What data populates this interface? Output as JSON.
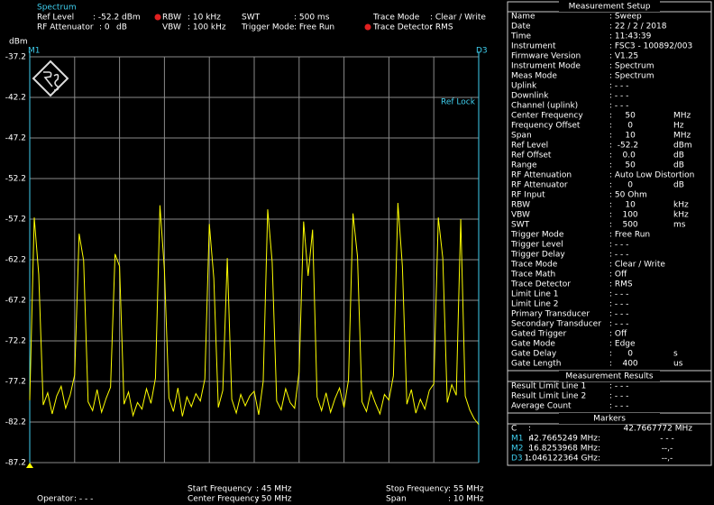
{
  "header": {
    "mode": "Spectrum",
    "ref_level_label": "Ref Level",
    "ref_level": ": -52.2 dBm",
    "rf_att_label": "RF Attenuator",
    "rf_att": ": 0",
    "rf_att_unit": "dB",
    "rbw_label": "RBW",
    "rbw": ": 10 kHz",
    "vbw_label": "VBW",
    "vbw": ": 100 kHz",
    "swt_label": "SWT",
    "swt": ": 500 ms",
    "trigger_label": "Trigger Mode",
    "trigger": ": Free Run",
    "trace_mode_label": "Trace Mode",
    "trace_mode": ": Clear / Write",
    "trace_det_label": "Trace Detector",
    "trace_det": ": RMS"
  },
  "plot_labels": {
    "marker_left": "M1",
    "marker_right": "D3",
    "ref_lock": "Ref Lock"
  },
  "chart_data": {
    "type": "line",
    "y_label": "dBm",
    "color": "#ffff00",
    "grid": true,
    "xlim": [
      45,
      55
    ],
    "ylim": [
      -87.2,
      -37.2
    ],
    "yticks": [
      -37.2,
      -42.2,
      -47.2,
      -52.2,
      -57.2,
      -62.2,
      -67.2,
      -72.2,
      -77.2,
      -82.2,
      -87.2
    ],
    "x": [
      45.0,
      45.1,
      45.2,
      45.3,
      45.4,
      45.5,
      45.6,
      45.7,
      45.8,
      45.9,
      46.0,
      46.1,
      46.2,
      46.3,
      46.4,
      46.5,
      46.6,
      46.7,
      46.8,
      46.9,
      47.0,
      47.1,
      47.2,
      47.3,
      47.4,
      47.5,
      47.6,
      47.7,
      47.8,
      47.9,
      48.0,
      48.1,
      48.2,
      48.3,
      48.4,
      48.5,
      48.6,
      48.7,
      48.8,
      48.9,
      49.0,
      49.1,
      49.2,
      49.3,
      49.4,
      49.5,
      49.6,
      49.7,
      49.8,
      49.9,
      50.0,
      50.1,
      50.2,
      50.3,
      50.4,
      50.5,
      50.6,
      50.7,
      50.8,
      50.9,
      51.0,
      51.1,
      51.2,
      51.3,
      51.4,
      51.5,
      51.6,
      51.7,
      51.8,
      51.9,
      52.0,
      52.1,
      52.2,
      52.3,
      52.4,
      52.5,
      52.6,
      52.7,
      52.8,
      52.9,
      53.0,
      53.1,
      53.2,
      53.3,
      53.4,
      53.5,
      53.6,
      53.7,
      53.8,
      53.9,
      54.0,
      54.1,
      54.2,
      54.3,
      54.4,
      54.5,
      54.6,
      54.7,
      54.8,
      54.9,
      55.0
    ],
    "values": [
      -79.5,
      -57.0,
      -64.0,
      -80.1,
      -78.6,
      -81.2,
      -79.0,
      -77.8,
      -80.5,
      -78.9,
      -76.4,
      -59.0,
      -62.3,
      -79.7,
      -80.8,
      -78.2,
      -81.0,
      -79.3,
      -77.9,
      -61.5,
      -63.0,
      -80.0,
      -78.5,
      -81.4,
      -79.8,
      -80.6,
      -78.1,
      -79.9,
      -76.8,
      -55.5,
      -63.5,
      -79.2,
      -80.9,
      -78.0,
      -81.5,
      -79.1,
      -80.3,
      -78.7,
      -79.6,
      -76.9,
      -57.8,
      -64.5,
      -80.4,
      -78.3,
      -62.0,
      -79.4,
      -81.1,
      -78.8,
      -80.2,
      -79.0,
      -78.4,
      -81.3,
      -77.2,
      -56.0,
      -62.5,
      -79.6,
      -80.7,
      -78.1,
      -79.8,
      -80.5,
      -76.0,
      -57.5,
      -64.2,
      -58.5,
      -79.1,
      -80.8,
      -78.6,
      -81.0,
      -79.3,
      -78.0,
      -80.4,
      -77.0,
      -56.5,
      -61.8,
      -79.7,
      -80.9,
      -78.4,
      -79.9,
      -81.2,
      -78.8,
      -79.5,
      -76.5,
      -55.2,
      -63.0,
      -80.0,
      -78.2,
      -81.1,
      -79.4,
      -80.6,
      -78.3,
      -77.5,
      -57.0,
      -62.0,
      -79.8,
      -77.6,
      -78.9,
      -57.2,
      -79.0,
      -80.7,
      -81.8,
      -82.5
    ]
  },
  "setup": {
    "title": "Measurement Setup",
    "rows": [
      [
        "Name",
        ": Sweep",
        ""
      ],
      [
        "Date",
        ": 22 / 2 / 2018",
        ""
      ],
      [
        "Time",
        ": 11:43:39",
        ""
      ],
      [
        "Instrument",
        ": FSC3 - 100892/003",
        ""
      ],
      [
        "Firmware Version",
        ": V1.25",
        ""
      ],
      [
        "Instrument Mode",
        ": Spectrum",
        ""
      ],
      [
        "Meas Mode",
        ": Spectrum",
        ""
      ],
      [
        "Uplink",
        ": - - -",
        ""
      ],
      [
        "Downlink",
        ": - - -",
        ""
      ],
      [
        "Channel (uplink)",
        ": - - -",
        ""
      ],
      [
        "Center Frequency",
        ":     50",
        "MHz"
      ],
      [
        "Frequency Offset",
        ":      0",
        "Hz"
      ],
      [
        "Span",
        ":     10",
        "MHz"
      ],
      [
        "Ref Level",
        ":  -52.2",
        "dBm"
      ],
      [
        "Ref Offset",
        ":    0.0",
        "dB"
      ],
      [
        "Range",
        ":     50",
        "dB"
      ],
      [
        "RF Attenuation",
        ": Auto Low Distortion",
        ""
      ],
      [
        "RF Attenuator",
        ":      0",
        "dB"
      ],
      [
        "RF Input",
        ": 50 Ohm",
        ""
      ],
      [
        "RBW",
        ":     10",
        "kHz"
      ],
      [
        "VBW",
        ":    100",
        "kHz"
      ],
      [
        "SWT",
        ":    500",
        "ms"
      ],
      [
        "Trigger Mode",
        ": Free Run",
        ""
      ],
      [
        "Trigger Level",
        ": - - -",
        ""
      ],
      [
        "Trigger Delay",
        ": - - -",
        ""
      ],
      [
        "Trace Mode",
        ": Clear / Write",
        ""
      ],
      [
        "Trace Math",
        ": Off",
        ""
      ],
      [
        "Trace Detector",
        ": RMS",
        ""
      ],
      [
        "Limit Line 1",
        ": - - -",
        ""
      ],
      [
        "Limit Line 2",
        ": - - -",
        ""
      ],
      [
        "Primary Transducer",
        ": - - -",
        ""
      ],
      [
        "Secondary Transducer",
        ": - - -",
        ""
      ],
      [
        "Gated Trigger",
        ": Off",
        ""
      ],
      [
        "Gate Mode",
        ": Edge",
        ""
      ],
      [
        "Gate Delay",
        ":      0",
        "s"
      ],
      [
        "Gate Length",
        ":    400",
        "us"
      ]
    ]
  },
  "results": {
    "title": "Measurement Results",
    "rows": [
      [
        "Result Limit Line 1",
        ": - - -"
      ],
      [
        "Result Limit Line 2",
        ": - - -"
      ],
      [
        "Average Count",
        ": - - -"
      ]
    ]
  },
  "markers": {
    "title": "Markers",
    "rows": [
      [
        "C",
        ":",
        "",
        "42.7667772 MHz"
      ],
      [
        "M1",
        ":",
        "42.7665249 MHz:",
        "- - -"
      ],
      [
        "M2",
        ":",
        "16.8253968 MHz:",
        "--,-"
      ],
      [
        "D3",
        ":",
        "1.046122364 GHz:",
        "--,-"
      ]
    ]
  },
  "footer": {
    "start_label": "Start Frequency",
    "start": ": 45 MHz",
    "center_label": "Center Frequency",
    "center": ": 50 MHz",
    "stop_label": "Stop Frequency",
    "stop": ": 55 MHz",
    "span_label": "Span",
    "span": ": 10 MHz",
    "operator_label": "Operator",
    "operator": ": - - -"
  }
}
